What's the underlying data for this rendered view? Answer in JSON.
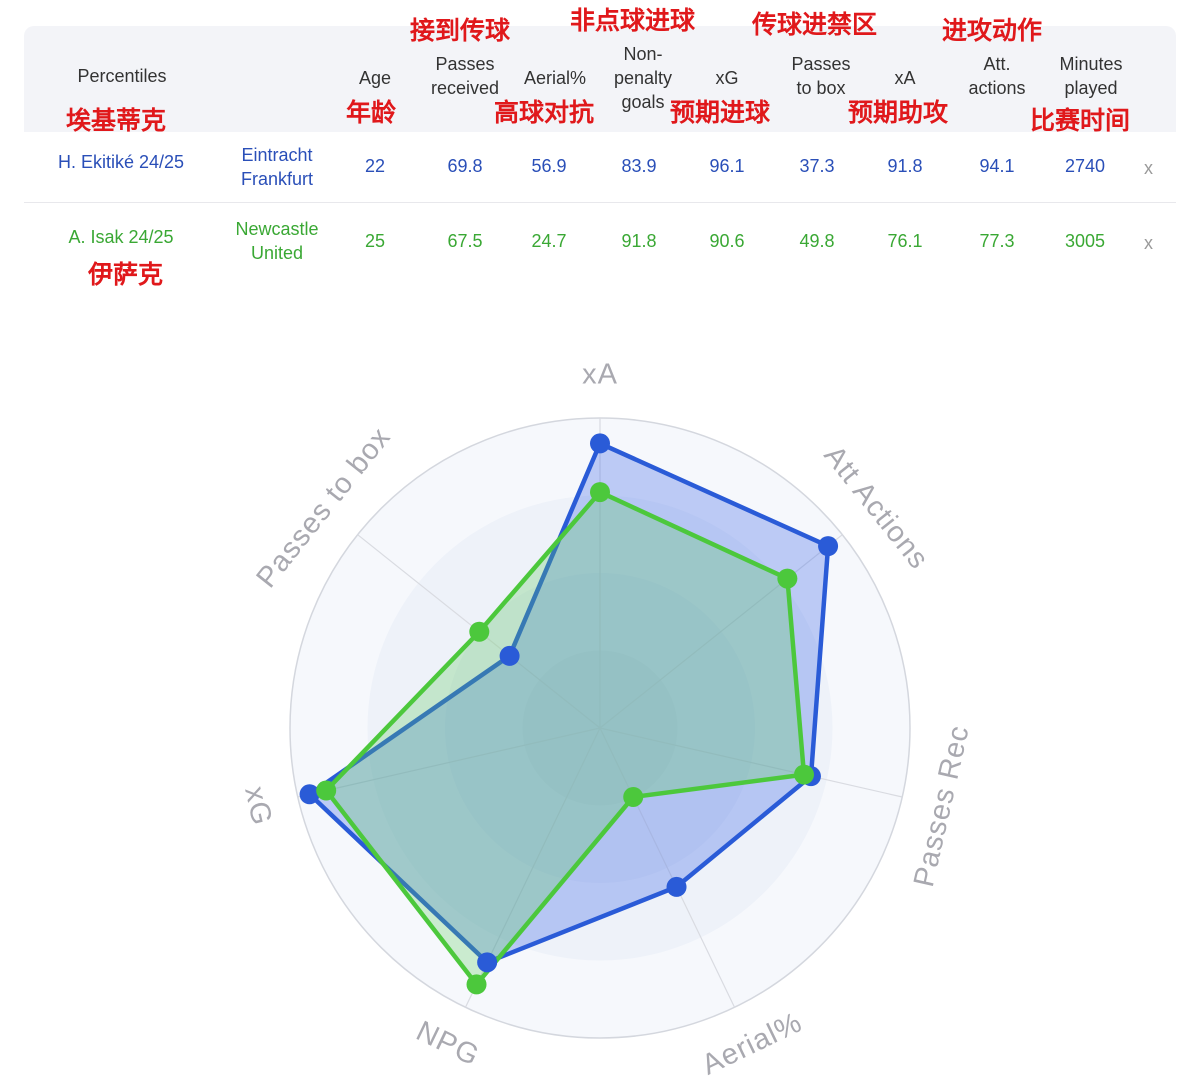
{
  "table": {
    "headers": {
      "percentiles": "Percentiles",
      "age": "Age",
      "passes_received": [
        "Passes",
        "received"
      ],
      "aerial": "Aerial%",
      "npg": [
        "Non-",
        "penalty",
        "goals"
      ],
      "xg": "xG",
      "passes_to_box": [
        "Passes",
        "to box"
      ],
      "xa": "xA",
      "att_actions": [
        "Att.",
        "actions"
      ],
      "minutes": [
        "Minutes",
        "played"
      ]
    },
    "annotations": {
      "passes_received": "接到传球",
      "npg": "非点球进球",
      "passes_to_box": "传球进禁区",
      "att_actions": "进攻动作",
      "player1": "埃基蒂克",
      "age": "年龄",
      "aerial": "高球对抗",
      "xg": "预期进球",
      "xa": "预期助攻",
      "minutes": "比赛时间",
      "player2": "伊萨克"
    },
    "rows": [
      {
        "player": "H. Ekitiké 24/25",
        "team": [
          "Eintracht",
          "Frankfurt"
        ],
        "age": "22",
        "passes_received": "69.8",
        "aerial": "56.9",
        "npg": "83.9",
        "xg": "96.1",
        "passes_to_box": "37.3",
        "xa": "91.8",
        "att_actions": "94.1",
        "minutes": "2740",
        "remove": "x",
        "color": "#2a4fb8"
      },
      {
        "player": "A. Isak 24/25",
        "team": [
          "Newcastle",
          "United"
        ],
        "age": "25",
        "passes_received": "67.5",
        "aerial": "24.7",
        "npg": "91.8",
        "xg": "90.6",
        "passes_to_box": "49.8",
        "xa": "76.1",
        "att_actions": "77.3",
        "minutes": "3005",
        "remove": "x",
        "color": "#3aa834"
      }
    ]
  },
  "chart_data": {
    "type": "radar",
    "axes": [
      "xA",
      "Att Actions",
      "Passes Rec",
      "Aerial%",
      "NPG",
      "xG",
      "Passes to box"
    ],
    "range": [
      0,
      100
    ],
    "grid_rings": 4,
    "series": [
      {
        "name": "H. Ekitiké 24/25",
        "values": [
          91.8,
          94.1,
          69.8,
          56.9,
          83.9,
          96.1,
          37.3
        ],
        "color": "#2a5bd7",
        "fill": "rgba(70,110,230,0.33)"
      },
      {
        "name": "A. Isak 24/25",
        "values": [
          76.1,
          77.3,
          67.5,
          24.7,
          91.8,
          90.6,
          49.8
        ],
        "color": "#4cc83c",
        "fill": "rgba(90,200,90,0.28)"
      }
    ]
  }
}
